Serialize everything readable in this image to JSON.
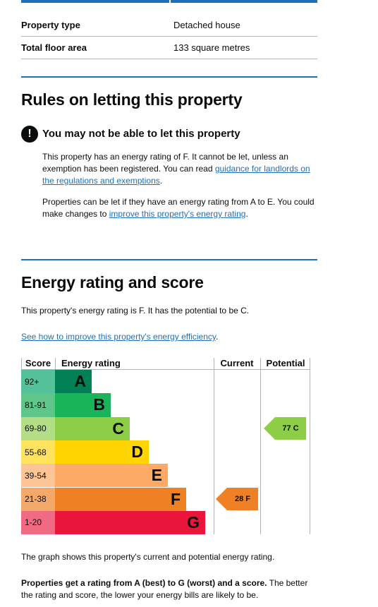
{
  "summary": [
    {
      "key": "Property type",
      "value": "Detached house"
    },
    {
      "key": "Total floor area",
      "value": "133 square metres"
    }
  ],
  "letting": {
    "heading": "Rules on letting this property",
    "warning_title": "You may not be able to let this property",
    "p1_text": "This property has an energy rating of F. It cannot be let, unless an exemption has been registered. You can read ",
    "p1_link": "guidance for landlords on the regulations and exemptions",
    "p1_end": ".",
    "p2_text": "Properties can be let if they have an energy rating from A to E. You could make changes to ",
    "p2_link": "improve this property's energy rating",
    "p2_end": "."
  },
  "energy": {
    "heading": "Energy rating and score",
    "intro": "This property's energy rating is F. It has the potential to be C.",
    "link": "See how to improve this property's energy efficiency",
    "link_end": ".",
    "graph_caption": "The graph shows this property's current and potential energy rating.",
    "footer_bold": "Properties get a rating from A (best) to G (worst) and a score.",
    "footer_rest": " The better the rating and score, the lower your energy bills are likely to be."
  },
  "chart_data": {
    "type": "bar",
    "columns": {
      "score": "Score",
      "rating": "Energy rating",
      "current": "Current",
      "potential": "Potential"
    },
    "bands": [
      {
        "range": "92+",
        "letter": "A",
        "color": "#008054",
        "light": "#54c19b"
      },
      {
        "range": "81-91",
        "letter": "B",
        "color": "#19b459",
        "light": "#5dc688"
      },
      {
        "range": "69-80",
        "letter": "C",
        "color": "#8dce46",
        "light": "#b4de85"
      },
      {
        "range": "55-68",
        "letter": "D",
        "color": "#ffd500",
        "light": "#ffe35c"
      },
      {
        "range": "39-54",
        "letter": "E",
        "color": "#fcaa65",
        "light": "#fdc595"
      },
      {
        "range": "21-38",
        "letter": "F",
        "color": "#ef8023",
        "light": "#f4a96b"
      },
      {
        "range": "1-20",
        "letter": "G",
        "color": "#e9153b",
        "light": "#f06a83"
      }
    ],
    "current": {
      "score": 28,
      "letter": "F",
      "label": "28 F"
    },
    "potential": {
      "score": 77,
      "letter": "C",
      "label": "77 C"
    }
  }
}
